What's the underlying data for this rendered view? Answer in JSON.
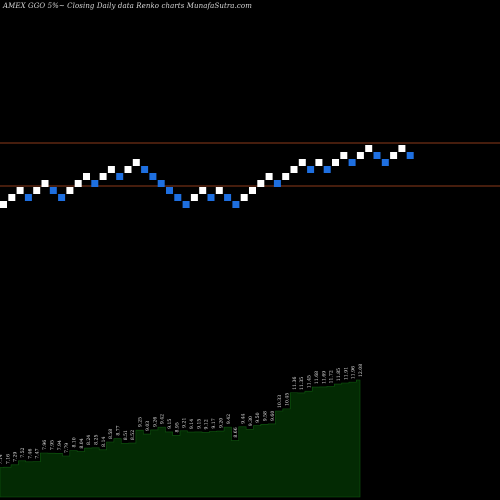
{
  "page": {
    "title": "AMEX  GGO 5%~  Closing Daily data  Renko  charts MunafaSutra.com"
  },
  "colors": {
    "background": "#000000",
    "up_brick": "#ffffff",
    "down_brick": "#1e6fe0",
    "level_line": "#8b3a1a",
    "area_fill": "#032a03",
    "area_line": "#0f5a0f",
    "label": "#e6e6e6"
  },
  "chart_data": [
    {
      "type": "renko",
      "directions": [
        "up",
        "up",
        "up",
        "down",
        "up",
        "up",
        "down",
        "down",
        "up",
        "up",
        "up",
        "down",
        "up",
        "up",
        "down",
        "up",
        "up",
        "down",
        "down",
        "down",
        "down",
        "down",
        "down",
        "up",
        "up",
        "down",
        "up",
        "down",
        "down",
        "up",
        "up",
        "up",
        "up",
        "down",
        "up",
        "up",
        "up",
        "down",
        "up",
        "down",
        "up",
        "up",
        "down",
        "up",
        "up",
        "down",
        "down",
        "up",
        "up",
        "down"
      ],
      "level_lines": [
        "upper",
        "lower"
      ]
    },
    {
      "type": "area",
      "x_count": 50,
      "values": [
        7.14,
        7.16,
        7.29,
        7.52,
        7.46,
        7.47,
        7.96,
        7.95,
        7.94,
        7.79,
        8.1,
        8.04,
        8.24,
        8.25,
        8.14,
        8.58,
        8.77,
        8.51,
        8.52,
        9.25,
        9.03,
        9.26,
        9.42,
        9.15,
        8.95,
        9.21,
        9.14,
        9.15,
        9.12,
        9.17,
        9.2,
        9.42,
        8.66,
        9.44,
        9.3,
        9.5,
        9.58,
        9.6,
        10.33,
        10.45,
        11.36,
        11.35,
        11.45,
        11.68,
        11.69,
        11.72,
        11.85,
        11.91,
        11.96,
        12.08
      ],
      "labels": [
        "7.14",
        "7.16",
        "7.29",
        "7.52",
        "7.46",
        "7.47",
        "7.96",
        "7.95",
        "7.94",
        "7.79",
        "8.10",
        "8.04",
        "8.24",
        "8.25",
        "8.14",
        "8.58",
        "8.77",
        "8.51",
        "8.52",
        "9.25",
        "9.03",
        "9.26",
        "9.42",
        "9.15",
        "8.95",
        "9.21",
        "9.14",
        "9.15",
        "9.12",
        "9.17",
        "9.20",
        "9.42",
        "8.66",
        "9.44",
        "9.30",
        "9.50",
        "9.58",
        "9.60",
        "10.33",
        "10.45",
        "11.36",
        "11.35",
        "11.45",
        "11.68",
        "11.69",
        "11.72",
        "11.85",
        "11.91",
        "11.96",
        "12.08"
      ]
    }
  ]
}
